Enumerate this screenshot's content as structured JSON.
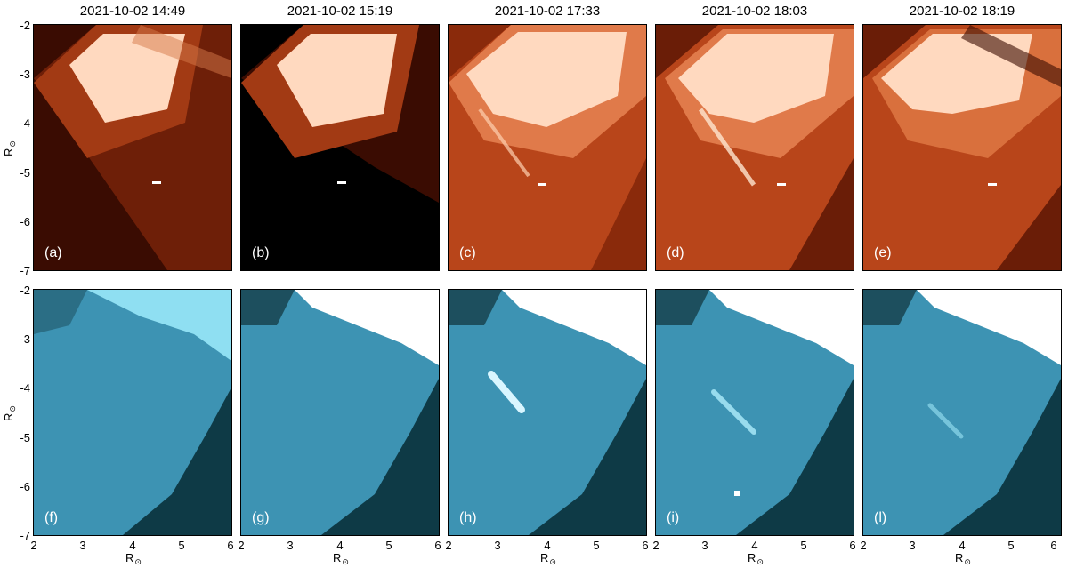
{
  "timestamps": [
    "2021-10-02 14:49",
    "2021-10-02 15:19",
    "2021-10-02 17:33",
    "2021-10-02 18:03",
    "2021-10-02 18:19"
  ],
  "top_row_labels": [
    "(a)",
    "(b)",
    "(c)",
    "(d)",
    "(e)"
  ],
  "bottom_row_labels": [
    "(f)",
    "(g)",
    "(h)",
    "(i)",
    "(l)"
  ],
  "y_ticks": [
    "-2",
    "-3",
    "-4",
    "-5",
    "-6",
    "-7"
  ],
  "x_ticks": [
    "2",
    "3",
    "4",
    "5",
    "6"
  ],
  "axis_label": {
    "text": "R",
    "sub": "⊙"
  },
  "colors": {
    "top_dark": "#3a0c02",
    "top_mid": "#b8451a",
    "top_bright": "#ffd9bf",
    "bottom_dark": "#0e3a46",
    "bottom_mid": "#3d93b3",
    "bottom_bright": "#ffffff"
  }
}
